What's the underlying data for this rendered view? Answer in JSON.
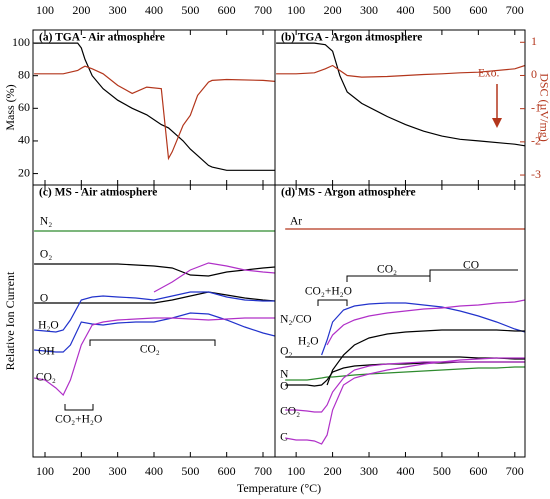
{
  "chart_data": [
    {
      "type": "line",
      "title": "(a) TGA - Air atmosphere",
      "xaxis": "top",
      "y_label": "Mass (%)",
      "xlim": [
        67,
        733
      ],
      "xticks": [
        100,
        200,
        300,
        400,
        500,
        600,
        700
      ],
      "ylim": [
        13,
        108
      ],
      "yticks": [
        20,
        40,
        60,
        80,
        100
      ],
      "y2lim": [
        -3.3,
        1.37
      ],
      "x": [
        70,
        100,
        150,
        190,
        200,
        210,
        230,
        260,
        300,
        340,
        380,
        420,
        440,
        450,
        480,
        500,
        520,
        550,
        560,
        600,
        700,
        733
      ],
      "series": [
        {
          "color": "#000000",
          "values": [
            100,
            100,
            100,
            100,
            97,
            90,
            80,
            72,
            65,
            60,
            56,
            50,
            48,
            46,
            40,
            35,
            31,
            25,
            24,
            22,
            22,
            22
          ]
        },
        {
          "color": "#b3361c",
          "axis": "y2",
          "values": [
            0.05,
            0.05,
            0.05,
            0.15,
            0.22,
            0.28,
            0.2,
            0.05,
            -0.3,
            -0.54,
            -0.35,
            -0.4,
            -2.5,
            -2.3,
            -1.5,
            -1.2,
            -0.6,
            -0.2,
            -0.15,
            -0.12,
            -0.15,
            -0.18
          ]
        }
      ]
    },
    {
      "type": "line",
      "title": "(b) TGA - Argon atmosphere",
      "xaxis": "top",
      "y2_label": "DSC (µV/mg)",
      "xlim": [
        42,
        728
      ],
      "xticks": [
        100,
        200,
        300,
        400,
        500,
        600,
        700
      ],
      "ylim": [
        13,
        108
      ],
      "y2lim": [
        -3.3,
        1.37
      ],
      "y2ticks": [
        -3,
        -2,
        -1,
        0,
        1
      ],
      "x": [
        45,
        100,
        150,
        180,
        200,
        220,
        240,
        280,
        350,
        400,
        450,
        500,
        550,
        600,
        700,
        728
      ],
      "series": [
        {
          "color": "#000000",
          "values": [
            100,
            100,
            100,
            99,
            95,
            80,
            70,
            63,
            55,
            50,
            46,
            43,
            41,
            40,
            38,
            37
          ]
        },
        {
          "color": "#b3361c",
          "axis": "y2",
          "values": [
            0.05,
            0.05,
            0.08,
            0.2,
            0.3,
            0.15,
            0.0,
            -0.05,
            -0.03,
            0.0,
            0.03,
            0.05,
            0.08,
            0.1,
            0.2,
            0.3
          ]
        }
      ],
      "annotations": [
        {
          "text": "Exo.",
          "x": 599,
          "y": 81
        }
      ]
    },
    {
      "type": "line",
      "title": "(c) MS - Air atmosphere",
      "xaxis": "bottom",
      "y_label": "Relative Ion Current",
      "x_label": "Temperature (°C)",
      "xlim": [
        67,
        733
      ],
      "xticks": [
        100,
        200,
        300,
        400,
        500,
        600,
        700
      ],
      "ylim": [
        0,
        272
      ],
      "x": [
        70,
        100,
        130,
        150,
        170,
        200,
        230,
        260,
        300,
        350,
        400,
        450,
        500,
        550,
        600,
        650,
        700,
        733
      ],
      "series": [
        {
          "color": "#2e8b2e",
          "values": [
            226,
            226,
            226,
            226,
            226,
            226,
            226,
            226,
            226,
            226,
            226,
            226,
            226,
            226,
            226,
            226,
            226,
            226
          ]
        },
        {
          "color": "#000000",
          "values": [
            193,
            193,
            193,
            193,
            193,
            193,
            193,
            193,
            193,
            192,
            191,
            189,
            182,
            181,
            185,
            187,
            189,
            190
          ]
        },
        {
          "color": "#b030c8",
          "values": [
            null,
            null,
            null,
            null,
            null,
            null,
            null,
            null,
            null,
            null,
            165,
            175,
            187,
            194,
            191,
            187,
            185,
            184
          ]
        },
        {
          "color": "#000000",
          "values": [
            154,
            154,
            154,
            154,
            154,
            154,
            154,
            154,
            154,
            154,
            154,
            157,
            161,
            165,
            162,
            159,
            157,
            156
          ]
        },
        {
          "color": "#2233cc",
          "values": [
            127,
            126,
            125,
            127,
            137,
            157,
            160,
            161,
            160,
            159,
            157,
            161,
            165,
            165,
            160,
            157,
            156,
            156
          ]
        },
        {
          "color": "#2233cc",
          "values": [
            107,
            106,
            105,
            105,
            112,
            135,
            133,
            132,
            134,
            135,
            135,
            139,
            144,
            143,
            137,
            130,
            124,
            121
          ]
        },
        {
          "color": "#b030c8",
          "values": [
            79,
            77,
            69,
            62,
            77,
            112,
            132,
            135,
            137,
            138,
            139,
            139,
            138,
            137,
            138,
            139,
            139,
            139
          ]
        }
      ],
      "annotations": [
        {
          "text": "N₂",
          "x": 86,
          "y": 235
        },
        {
          "text": "O₂",
          "x": 86,
          "y": 202
        },
        {
          "text": "O",
          "x": 86,
          "y": 158
        },
        {
          "text": "H₂O",
          "x": 81,
          "y": 131
        },
        {
          "text": "OH",
          "x": 81,
          "y": 105
        },
        {
          "text": "CO₂",
          "x": 75,
          "y": 79
        },
        {
          "text": "CO₂",
          "x": 361,
          "y": 107
        },
        {
          "text": "CO₂+H₂O",
          "x": 128,
          "y": 37
        }
      ]
    },
    {
      "type": "line",
      "title": "(d) MS - Argon atmosphere",
      "xaxis": "bottom",
      "xlim": [
        42,
        728
      ],
      "xticks": [
        100,
        200,
        300,
        400,
        500,
        600,
        700
      ],
      "ylim": [
        0,
        272
      ],
      "x": [
        70,
        100,
        130,
        150,
        170,
        185,
        200,
        230,
        260,
        300,
        350,
        400,
        450,
        500,
        550,
        600,
        650,
        700,
        728
      ],
      "series": [
        {
          "color": "#b3361c",
          "values": [
            228,
            228,
            228,
            228,
            228,
            228,
            228,
            228,
            228,
            228,
            228,
            228,
            228,
            228,
            228,
            228,
            228,
            228,
            228
          ]
        },
        {
          "color": "#2233cc",
          "values": [
            null,
            null,
            null,
            null,
            102,
            117,
            135,
            147,
            151,
            153,
            154,
            154,
            152,
            150,
            146,
            141,
            135,
            128,
            125
          ]
        },
        {
          "color": "#b030c8",
          "values": [
            null,
            null,
            null,
            null,
            null,
            112,
            122,
            132,
            137,
            141,
            144,
            146,
            148,
            149,
            151,
            152,
            154,
            155,
            157
          ]
        },
        {
          "color": "#000000",
          "values": [
            null,
            null,
            null,
            null,
            null,
            72,
            87,
            102,
            112,
            119,
            123,
            125,
            126,
            127,
            127,
            127,
            127,
            126,
            126
          ]
        },
        {
          "color": "#000000",
          "values": [
            100,
            100,
            100,
            100,
            100,
            100,
            100,
            100,
            100,
            100,
            100,
            100,
            100,
            100,
            100,
            99,
            99,
            98,
            98
          ]
        },
        {
          "color": "#2e8b2e",
          "values": [
            77,
            77,
            77,
            78,
            79,
            80,
            80,
            81,
            82,
            83,
            84,
            85,
            86,
            87,
            88,
            89,
            89,
            90,
            90
          ]
        },
        {
          "color": "#000000",
          "values": [
            72,
            72,
            72,
            71,
            72,
            77,
            85,
            89,
            91,
            92,
            93,
            93,
            94,
            94,
            95,
            95,
            95,
            95,
            95
          ]
        },
        {
          "color": "#b030c8",
          "values": [
            47,
            47,
            46,
            45,
            45,
            52,
            65,
            79,
            87,
            91,
            93,
            94,
            95,
            95,
            95,
            95,
            95,
            95,
            95
          ]
        },
        {
          "color": "#b030c8",
          "values": [
            19,
            17,
            17,
            16,
            13,
            22,
            47,
            72,
            79,
            83,
            87,
            90,
            93,
            95,
            97,
            98,
            99,
            99,
            99
          ]
        }
      ],
      "annotations": [
        {
          "text": "Ar",
          "x": 83,
          "y": 235
        },
        {
          "text": "N₂/CO",
          "x": 56,
          "y": 137
        },
        {
          "text": "H₂O",
          "x": 105,
          "y": 115
        },
        {
          "text": "O₂",
          "x": 56,
          "y": 105
        },
        {
          "text": "N",
          "x": 56,
          "y": 82
        },
        {
          "text": "O",
          "x": 56,
          "y": 70
        },
        {
          "text": "CO₂",
          "x": 56,
          "y": 45
        },
        {
          "text": "C",
          "x": 56,
          "y": 19
        },
        {
          "text": "CO₂+H₂O",
          "x": 124,
          "y": 165
        },
        {
          "text": "CO₂",
          "x": 322,
          "y": 187
        },
        {
          "text": "CO",
          "x": 558,
          "y": 191
        }
      ]
    }
  ]
}
